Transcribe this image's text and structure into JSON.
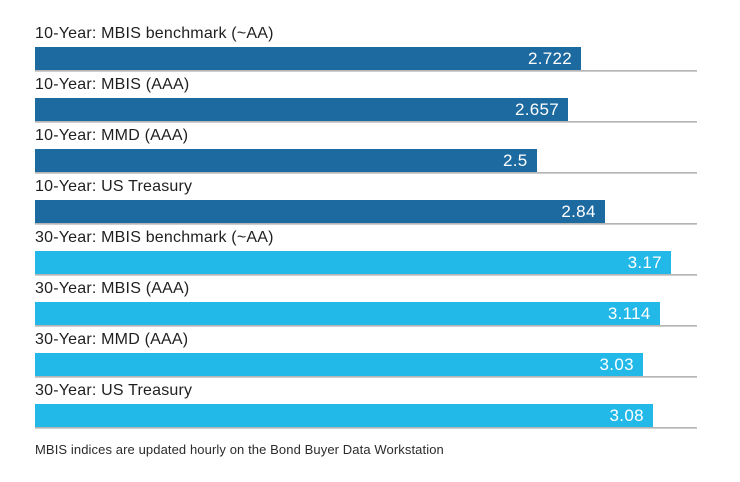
{
  "chart_data": {
    "type": "bar",
    "orientation": "horizontal",
    "title": "",
    "xlabel": "",
    "ylabel": "",
    "xlim": [
      0,
      3.3
    ],
    "grid": "category-baselines",
    "legend": "none",
    "categories": [
      "10-Year: MBIS benchmark (~AA)",
      "10-Year: MBIS (AAA)",
      "10-Year: MMD (AAA)",
      "10-Year: US Treasury",
      "30-Year: MBIS benchmark (~AA)",
      "30-Year: MBIS (AAA)",
      "30-Year: MMD (AAA)",
      "30-Year: US Treasury"
    ],
    "values": [
      2.722,
      2.657,
      2.5,
      2.84,
      3.17,
      3.114,
      3.03,
      3.08
    ],
    "value_labels": [
      "2.722",
      "2.657",
      "2.5",
      "2.84",
      "3.17",
      "3.114",
      "3.03",
      "3.08"
    ],
    "groups": [
      "10-year",
      "10-year",
      "10-year",
      "10-year",
      "30-year",
      "30-year",
      "30-year",
      "30-year"
    ],
    "group_colors": {
      "10-year": "#1c6aa0",
      "30-year": "#22b8e8"
    }
  },
  "colors": {
    "background": "#ffffff",
    "bar_10_year": "#1c6aa0",
    "bar_30_year": "#22b8e8",
    "baseline_gray": "#a9a9a9",
    "label_text": "#1f1f1f",
    "value_text": "#ffffff"
  },
  "footer": {
    "note": "MBIS indices are updated hourly on the Bond Buyer Data Workstation"
  }
}
